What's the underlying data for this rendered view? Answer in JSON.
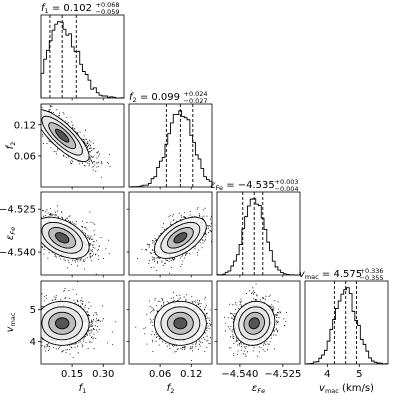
{
  "chart_data": {
    "type": "corner",
    "params": [
      {
        "id": "f1",
        "label_base": "f",
        "label_sub": "1",
        "italic_base": true,
        "median": 0.102,
        "err_plus": 0.068,
        "err_minus": 0.059,
        "title_value": "0.102",
        "title_plus": "+0.068",
        "title_minus": "−0.059",
        "range": [
          0.0,
          0.4
        ],
        "ticks": [
          0.15,
          0.3
        ],
        "tick_labels": [
          "0.15",
          "0.30"
        ],
        "sigma": 0.065,
        "skew": 0.35
      },
      {
        "id": "f2",
        "label_base": "f",
        "label_sub": "2",
        "italic_base": true,
        "median": 0.099,
        "err_plus": 0.024,
        "err_minus": 0.027,
        "title_value": "0.099",
        "title_plus": "+0.024",
        "title_minus": "−0.027",
        "range": [
          0.0,
          0.16
        ],
        "ticks": [
          0.06,
          0.12
        ],
        "tick_labels": [
          "0.06",
          "0.12"
        ],
        "sigma": 0.025,
        "skew": 0.0
      },
      {
        "id": "eFe",
        "label_base": "ε",
        "label_sub": "Fe",
        "italic_base": true,
        "median": -4.535,
        "err_plus": 0.003,
        "err_minus": 0.004,
        "title_value": "−4.535",
        "title_plus": "+0.003",
        "title_minus": "−0.004",
        "range": [
          -4.548,
          -4.519
        ],
        "ticks": [
          -4.54,
          -4.525
        ],
        "tick_labels": [
          "−4.540",
          "−4.525"
        ],
        "sigma": 0.0036,
        "skew": 0.0
      },
      {
        "id": "vmac",
        "label_base": "v",
        "label_sub": "mac",
        "italic_base": true,
        "median": 4.575,
        "err_plus": 0.336,
        "err_minus": 0.355,
        "title_value": "4.575",
        "title_plus": "+0.336",
        "title_minus": "−0.355",
        "range": [
          3.3,
          5.9
        ],
        "ticks": [
          4,
          5
        ],
        "tick_labels": [
          "4",
          "5"
        ],
        "sigma": 0.345,
        "skew": 0.0
      },
      {
        "id": "vmac_x",
        "xlabel": "v",
        "xlabel_sub": "mac",
        "xlabel_unit": " (km/s)"
      }
    ],
    "correlations": [
      {
        "row": 1,
        "col": 0,
        "rho": -0.8
      },
      {
        "row": 2,
        "col": 0,
        "rho": -0.45
      },
      {
        "row": 2,
        "col": 1,
        "rho": 0.55
      },
      {
        "row": 3,
        "col": 0,
        "rho": 0.0
      },
      {
        "row": 3,
        "col": 1,
        "rho": 0.0
      },
      {
        "row": 3,
        "col": 2,
        "rho": 0.1
      }
    ],
    "quantile_lines": "16th, 50th, 84th percentiles (dashed)",
    "grid": false
  },
  "colors": {
    "ink": "#000000",
    "contour_fill": "#d9d9d9",
    "core_fill": "#3a3a3a"
  }
}
